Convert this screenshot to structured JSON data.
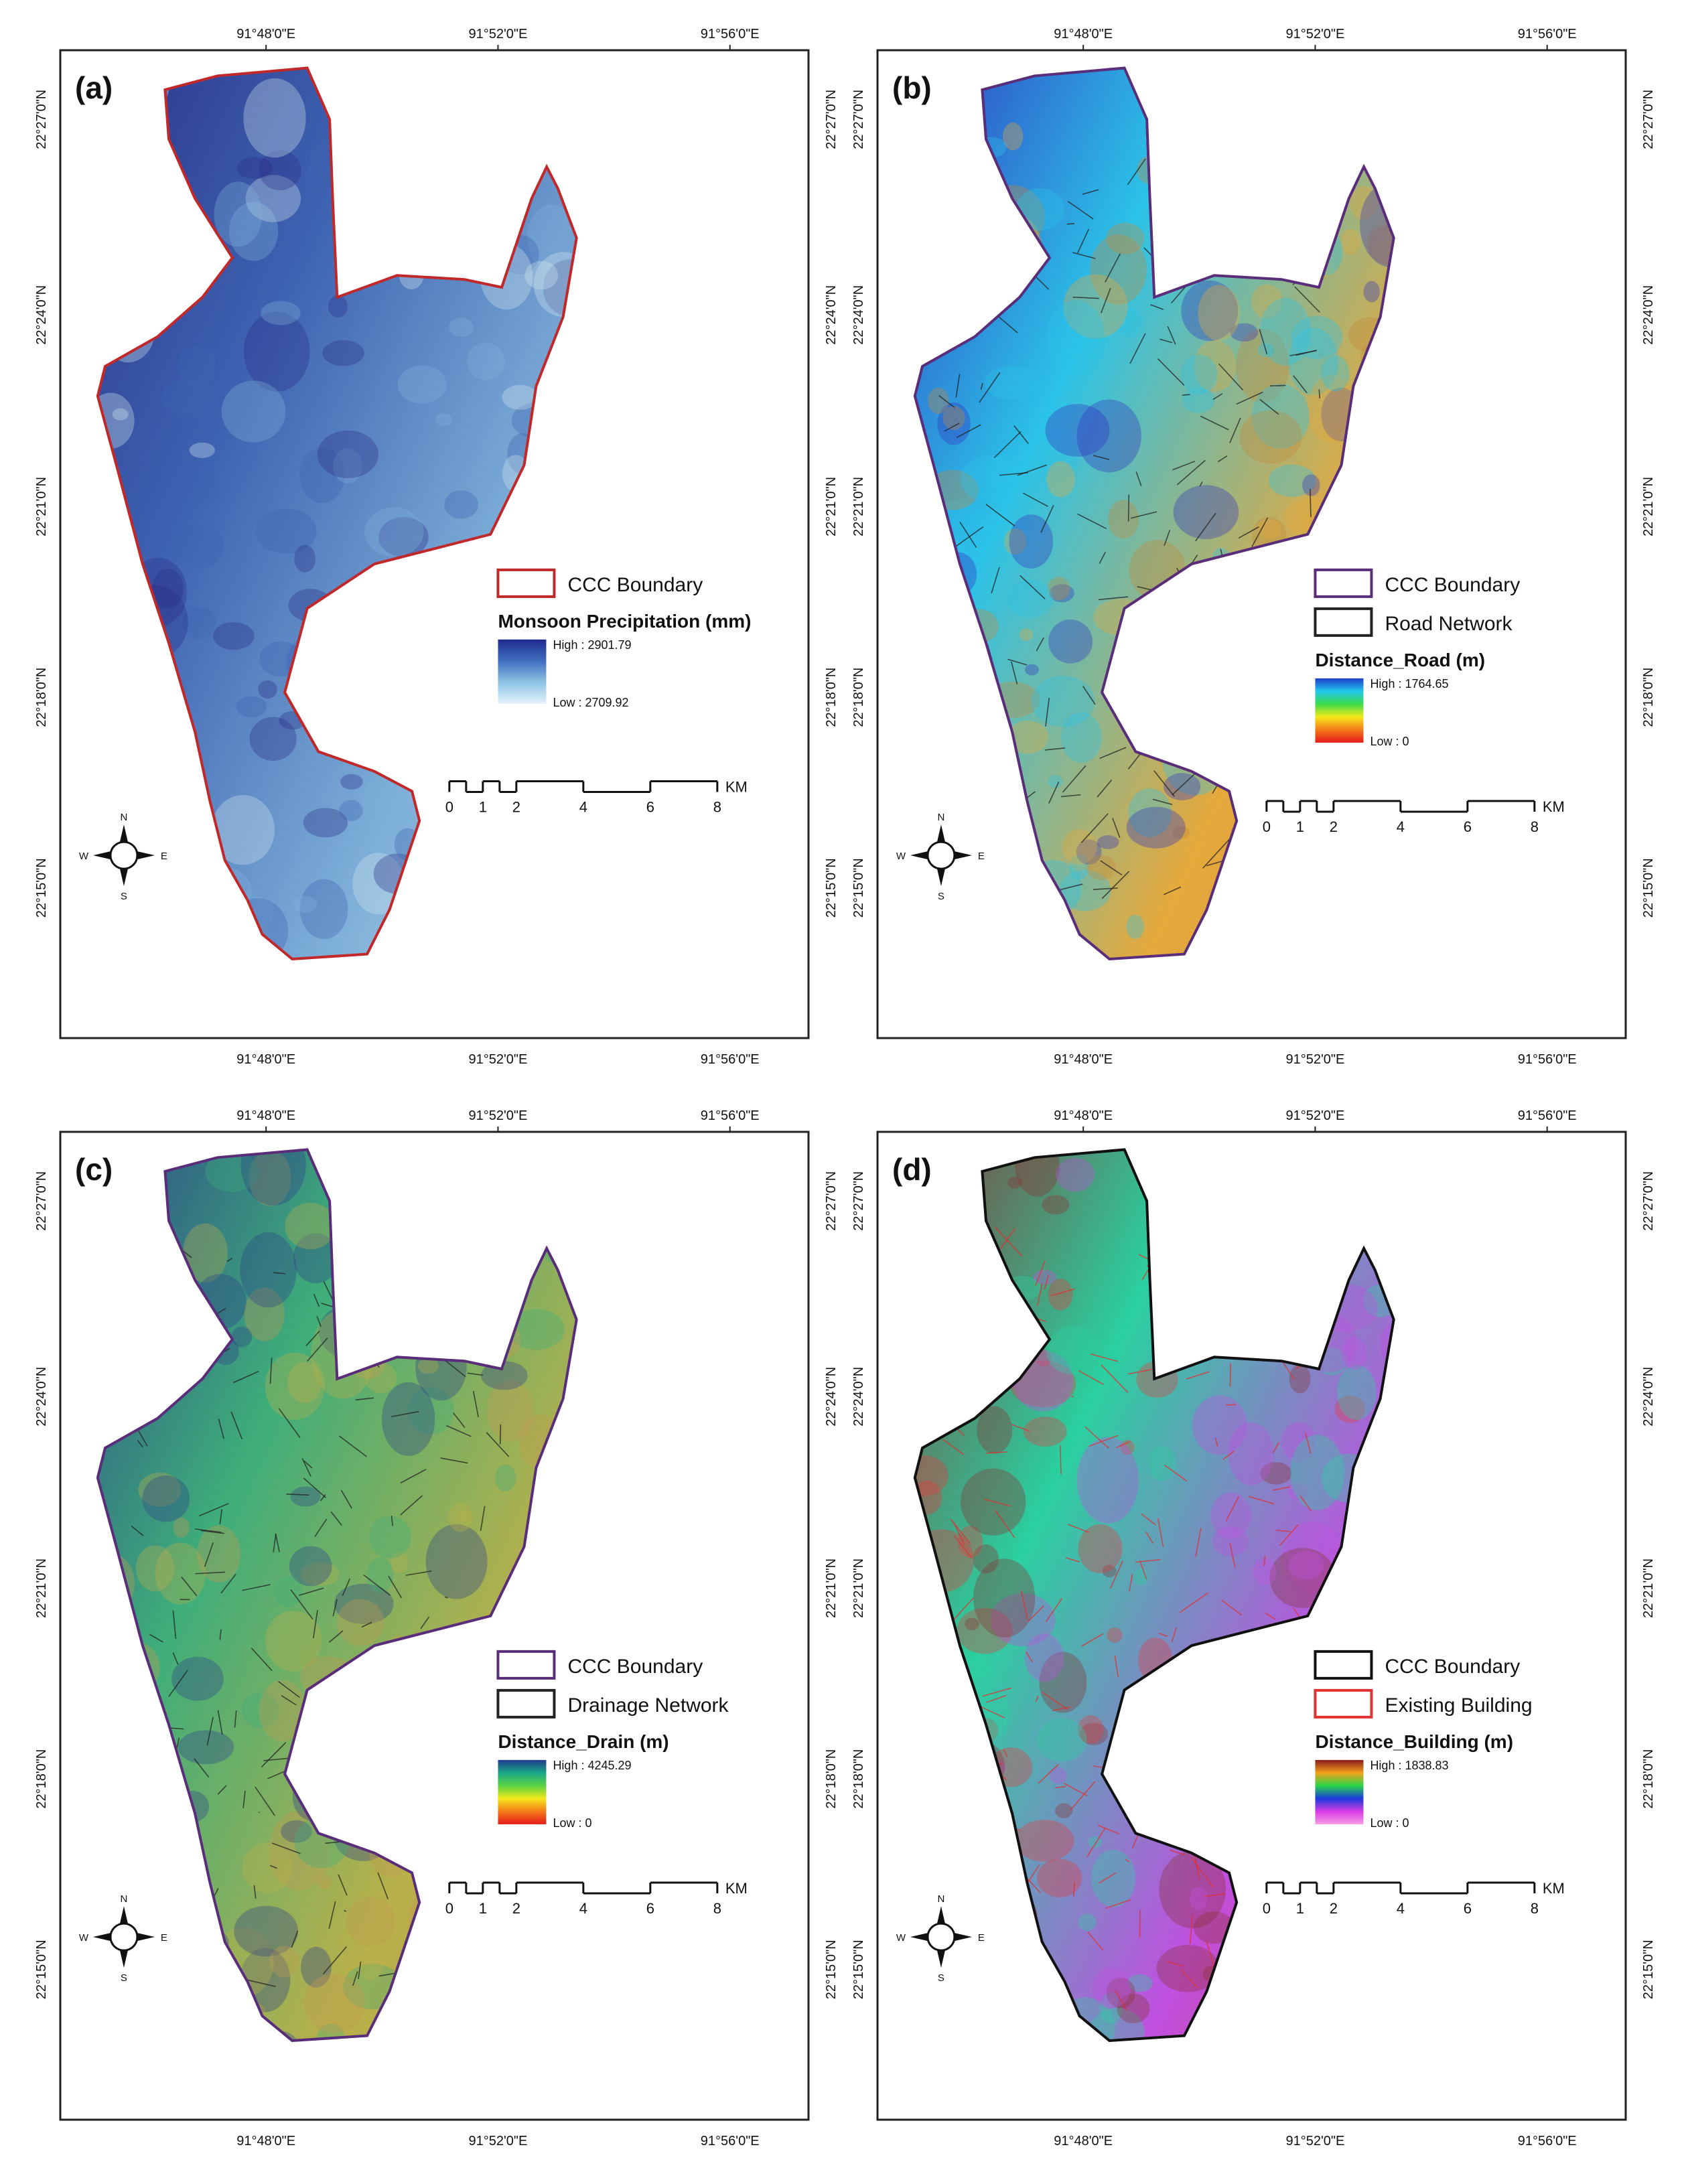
{
  "coordinates": {
    "lon_labels": [
      "91°48'0\"E",
      "91°52'0\"E",
      "91°56'0\"E"
    ],
    "lat_labels": [
      "22°27'0\"N",
      "22°24'0\"N",
      "22°21'0\"N",
      "22°18'0\"N",
      "22°15'0\"N"
    ]
  },
  "compass": {
    "n": "N",
    "s": "S",
    "e": "E",
    "w": "W"
  },
  "scalebar": {
    "ticks": [
      "0",
      "1",
      "2",
      "4",
      "6",
      "8"
    ],
    "unit": "KM"
  },
  "panels": [
    {
      "label": "(a)",
      "boundary_label": "CCC Boundary",
      "boundary_color": "#c0282a",
      "network_label": "",
      "legend_title": "Monsoon Precipitation (mm)",
      "high_label": "High : 2901.79",
      "low_label": "Low : 2709.92",
      "ramp_colors": [
        "#1e2a8c",
        "#3f6fc0",
        "#8fc4e4",
        "#e4f3fa"
      ],
      "map_colors": [
        "#2a2f86",
        "#3e63b2",
        "#7fb0d9",
        "#cfe6ee"
      ]
    },
    {
      "label": "(b)",
      "boundary_label": "CCC Boundary",
      "boundary_color": "#5a2d7a",
      "network_label": "Road Network",
      "network_color": "#222222",
      "legend_title": "Distance_Road (m)",
      "high_label": "High : 1764.65",
      "low_label": "Low : 0",
      "ramp_colors": [
        "#1e3ccc",
        "#22c8ee",
        "#3cdc4a",
        "#f4e81a",
        "#f47a18",
        "#e41a1a"
      ],
      "map_colors": [
        "#3030c0",
        "#2cc3e8",
        "#e6a93c",
        "#c48a3a"
      ]
    },
    {
      "label": "(c)",
      "boundary_label": "CCC Boundary",
      "boundary_color": "#5a2d7a",
      "network_label": "Drainage Network",
      "network_color": "#222222",
      "legend_title": "Distance_Drain (m)",
      "high_label": "High : 4245.29",
      "low_label": "Low : 0",
      "ramp_colors": [
        "#1e3a8c",
        "#1aa88a",
        "#5ad242",
        "#f4e81a",
        "#f47a18",
        "#e41a1a"
      ],
      "map_colors": [
        "#2b3f8a",
        "#3fae7a",
        "#b9b04a",
        "#c49a50"
      ]
    },
    {
      "label": "(d)",
      "boundary_label": "CCC Boundary",
      "boundary_color": "#111111",
      "network_label": "Existing Building",
      "network_color": "#e03030",
      "legend_title": "Distance_Building (m)",
      "high_label": "High : 1838.83",
      "low_label": "Low : 0",
      "ramp_colors": [
        "#8a1a1a",
        "#f2a21a",
        "#2ad64a",
        "#1a3adc",
        "#d83ce4",
        "#f79ce8"
      ],
      "map_colors": [
        "#8a3030",
        "#2ad0a0",
        "#c050e0",
        "#e83a3a"
      ]
    }
  ]
}
